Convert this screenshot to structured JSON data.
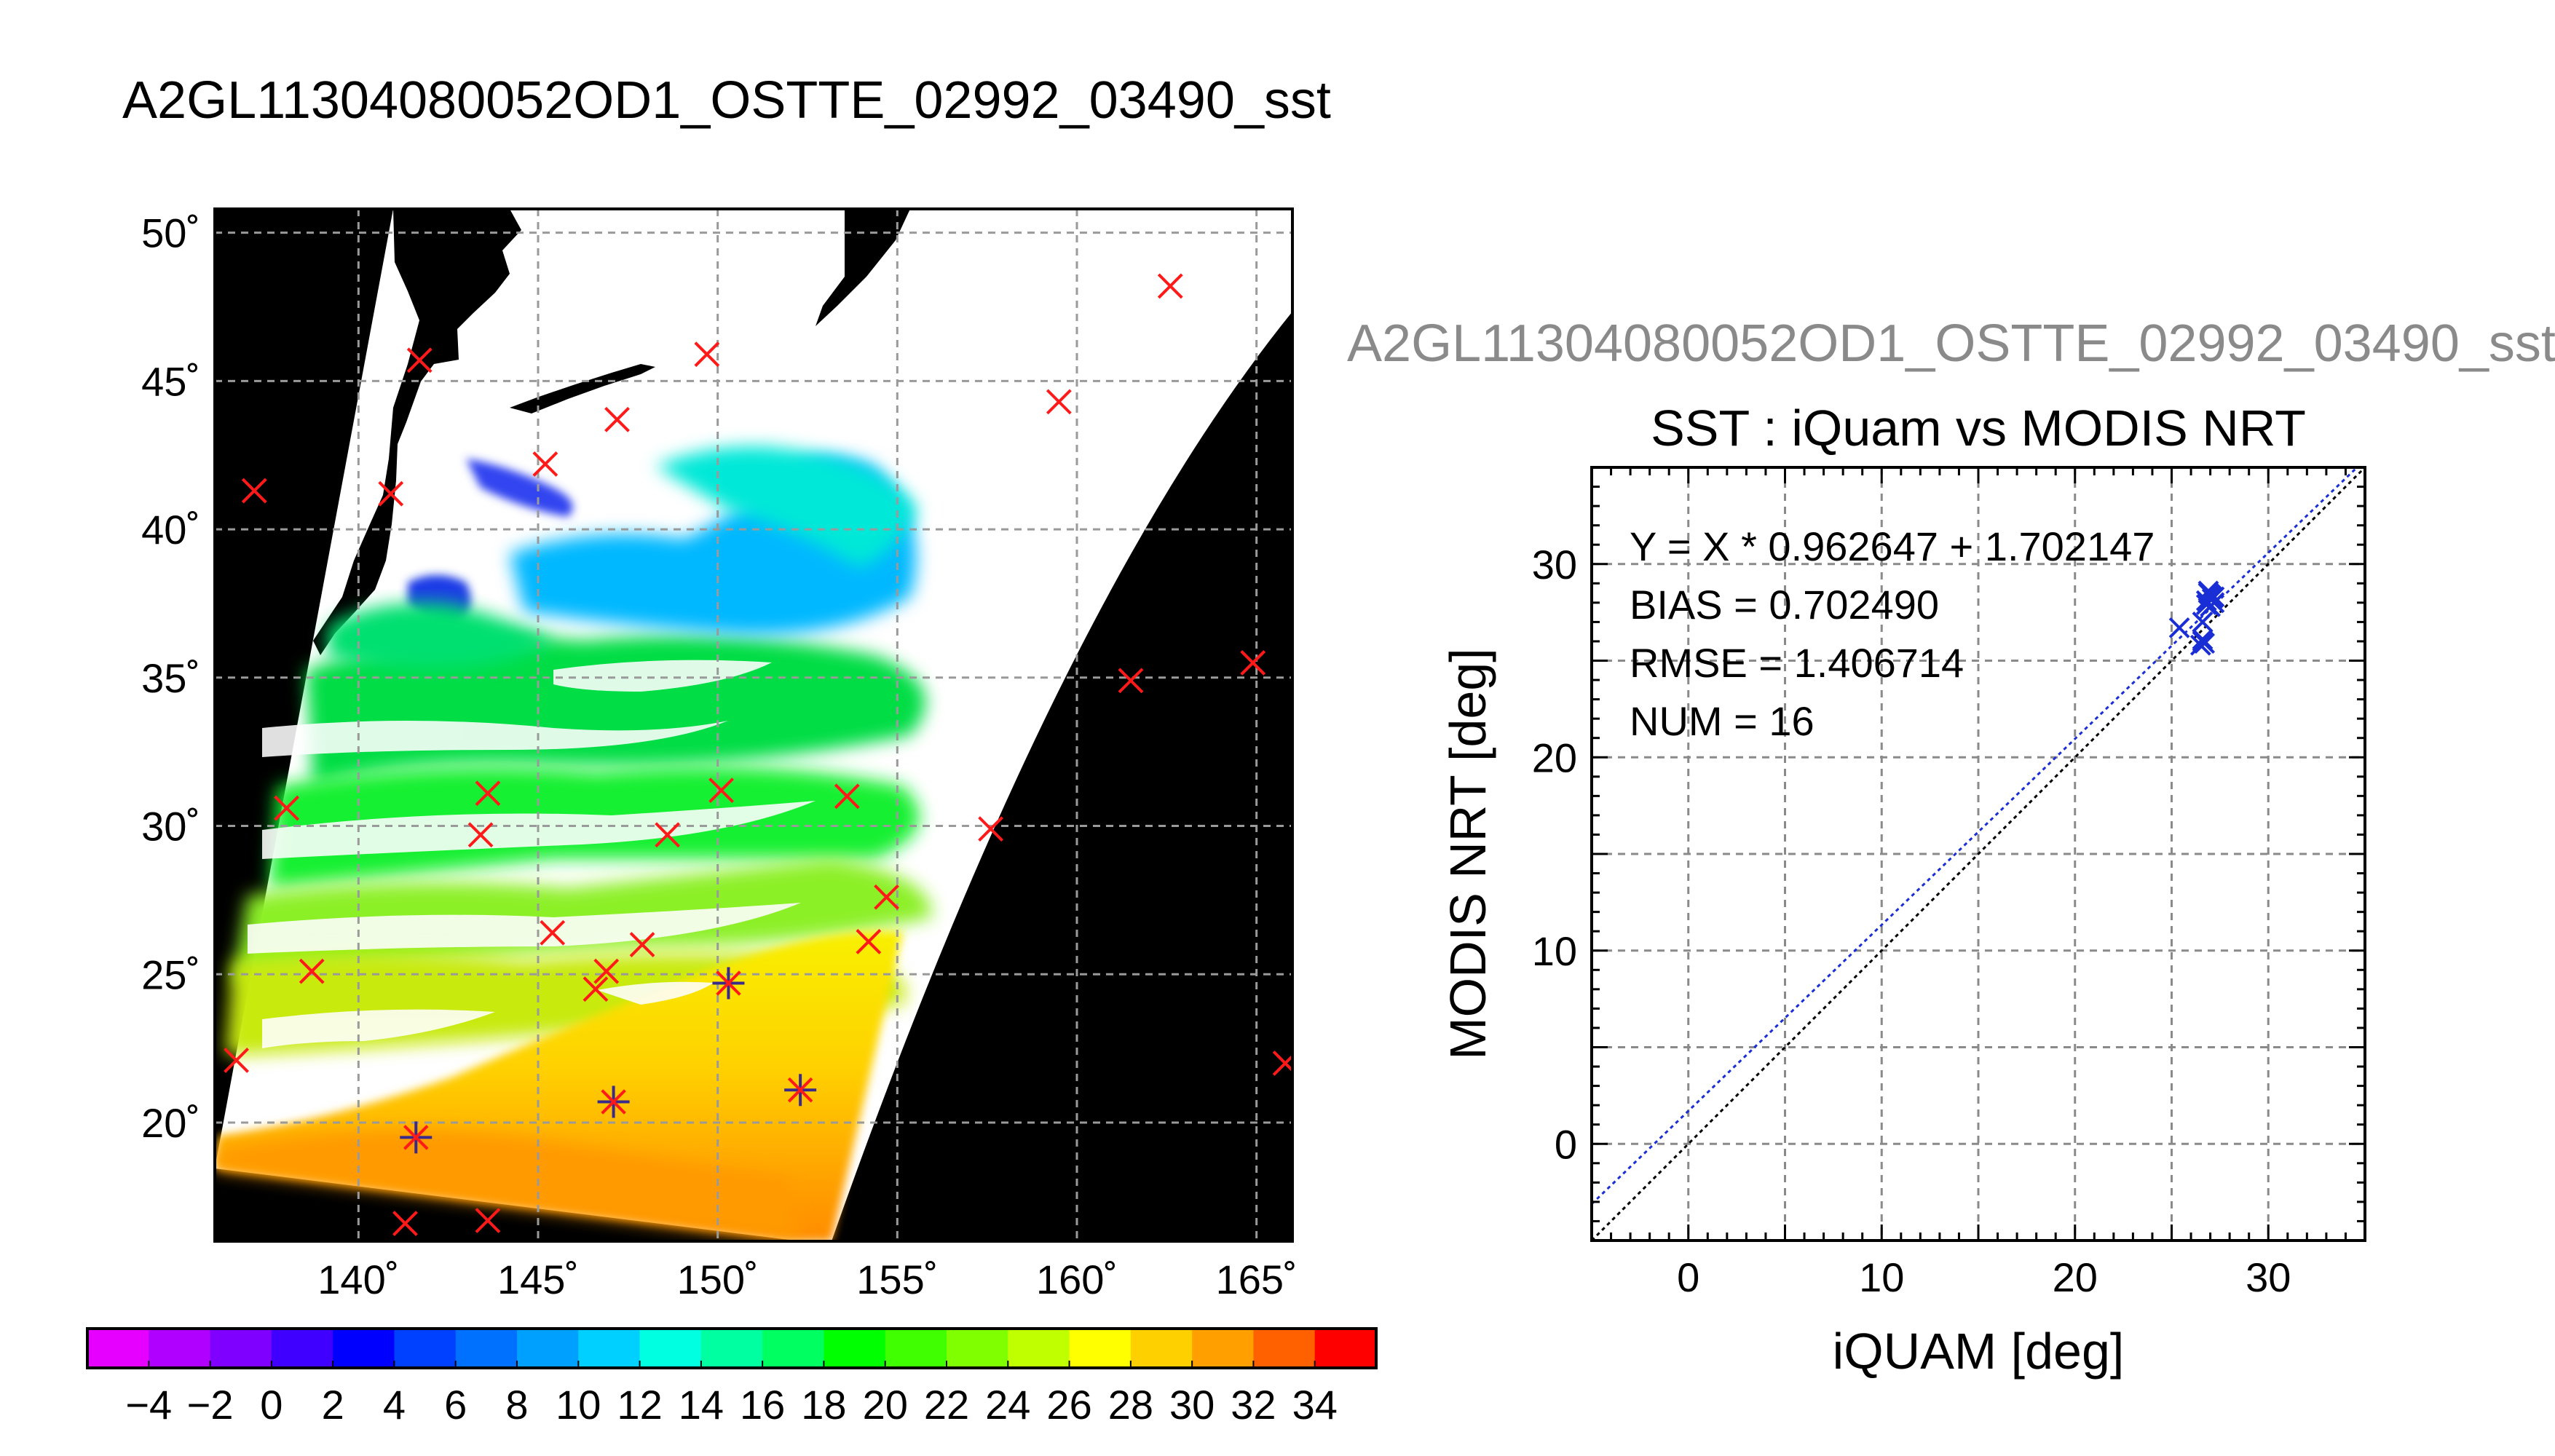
{
  "page_title": "A2GL11304080052OD1_OSTTE_02992_03490_sst",
  "map": {
    "lat_ticks": [
      50,
      45,
      40,
      35,
      30,
      25,
      20
    ],
    "lon_ticks": [
      140,
      145,
      150,
      155,
      160,
      165
    ],
    "lat_tick_labels": [
      "50˚",
      "45˚",
      "40˚",
      "35˚",
      "30˚",
      "25˚",
      "20˚"
    ],
    "lon_tick_labels": [
      "140˚",
      "145˚",
      "150˚",
      "155˚",
      "160˚",
      "165˚"
    ],
    "lon_range": [
      136.0,
      166.0
    ],
    "lat_range": [
      16.0,
      50.8
    ],
    "colors": {
      "no_data": "#000000",
      "cloud": "#ffffff",
      "matchup": "#ff1a1a",
      "valid_matchup": "#3a2a8c"
    }
  },
  "colorbar": {
    "labels": [
      "−4",
      "−2",
      "0",
      "2",
      "4",
      "6",
      "8",
      "10",
      "12",
      "14",
      "16",
      "18",
      "20",
      "22",
      "24",
      "26",
      "28",
      "30",
      "32",
      "34"
    ],
    "colors": [
      "#e600ff",
      "#b000ff",
      "#8000ff",
      "#4000ff",
      "#0000ff",
      "#0040ff",
      "#0070ff",
      "#00a0ff",
      "#00d0ff",
      "#00ffe0",
      "#00ffa0",
      "#00ff60",
      "#00ff00",
      "#40ff00",
      "#80ff00",
      "#c0ff00",
      "#ffff00",
      "#ffd000",
      "#ffa000",
      "#ff6000",
      "#ff0000"
    ]
  },
  "scatter": {
    "subtitle": "A2GL11304080052OD1_OSTTE_02992_03490_sst",
    "title": "SST : iQuam vs MODIS NRT",
    "xlabel": "iQUAM [deg]",
    "ylabel": "MODIS NRT [deg]",
    "xlim": [
      -5,
      35
    ],
    "ylim": [
      -5,
      35
    ],
    "x_ticks": [
      0,
      10,
      20,
      30
    ],
    "y_ticks": [
      0,
      10,
      20,
      30
    ],
    "x_tick_labels": [
      "0",
      "10",
      "20",
      "30"
    ],
    "y_tick_labels": [
      "0",
      "10",
      "20",
      "30"
    ],
    "stats": [
      "Y = X * 0.962647 + 1.702147",
      "BIAS = 0.702490",
      "RMSE = 1.406714",
      "NUM = 16"
    ],
    "colors": {
      "points": "#1a2ed6",
      "fit_line": "#1a2ed6",
      "identity_line": "#000000"
    }
  },
  "chart_data": [
    {
      "type": "scatter",
      "title": "SST : iQuam vs MODIS NRT",
      "xlabel": "iQUAM [deg]",
      "ylabel": "MODIS NRT [deg]",
      "xlim": [
        -5,
        35
      ],
      "ylim": [
        -5,
        35
      ],
      "grid": true,
      "x": [
        26.9,
        27.1,
        26.8,
        27.0,
        26.6,
        25.4,
        26.5,
        26.6,
        27.2,
        26.9,
        27.1,
        26.7,
        26.6,
        26.8,
        27.0,
        27.2
      ],
      "y": [
        28.6,
        28.2,
        27.9,
        28.4,
        27.0,
        26.7,
        25.8,
        26.0,
        28.0,
        28.5,
        28.3,
        25.9,
        26.1,
        28.1,
        27.8,
        28.3
      ],
      "fit": {
        "slope": 0.962647,
        "intercept": 1.702147
      },
      "identity_line": true
    },
    {
      "type": "map",
      "title": "A2GL11304080052OD1_OSTTE_02992_03490_sst",
      "lon_range": [
        136.0,
        166.0
      ],
      "lat_range": [
        16.0,
        50.8
      ],
      "colorbar_range": [
        -5,
        35
      ],
      "colorbar_step": 2,
      "matchups": [
        {
          "lon": 137.1,
          "lat": 41.3
        },
        {
          "lon": 138.0,
          "lat": 30.6
        },
        {
          "lon": 138.7,
          "lat": 25.1
        },
        {
          "lon": 136.6,
          "lat": 22.1
        },
        {
          "lon": 141.7,
          "lat": 45.7
        },
        {
          "lon": 140.9,
          "lat": 41.2
        },
        {
          "lon": 145.2,
          "lat": 42.2
        },
        {
          "lon": 147.2,
          "lat": 43.7
        },
        {
          "lon": 149.7,
          "lat": 45.9
        },
        {
          "lon": 159.5,
          "lat": 44.3
        },
        {
          "lon": 162.6,
          "lat": 48.2
        },
        {
          "lon": 143.6,
          "lat": 31.1
        },
        {
          "lon": 143.4,
          "lat": 29.7
        },
        {
          "lon": 148.6,
          "lat": 29.7
        },
        {
          "lon": 150.1,
          "lat": 31.2
        },
        {
          "lon": 153.6,
          "lat": 31.0
        },
        {
          "lon": 157.6,
          "lat": 29.9
        },
        {
          "lon": 161.5,
          "lat": 34.9
        },
        {
          "lon": 164.9,
          "lat": 35.5
        },
        {
          "lon": 145.4,
          "lat": 26.4
        },
        {
          "lon": 147.9,
          "lat": 26.0
        },
        {
          "lon": 146.9,
          "lat": 25.1
        },
        {
          "lon": 146.6,
          "lat": 24.5
        },
        {
          "lon": 154.2,
          "lat": 26.1
        },
        {
          "lon": 154.7,
          "lat": 27.6
        },
        {
          "lon": 141.3,
          "lat": 16.6
        },
        {
          "lon": 143.6,
          "lat": 16.7
        },
        {
          "lon": 165.8,
          "lat": 22.0
        }
      ],
      "valid_matchups": [
        {
          "lon": 141.6,
          "lat": 19.5
        },
        {
          "lon": 147.1,
          "lat": 20.7
        },
        {
          "lon": 150.3,
          "lat": 24.7
        },
        {
          "lon": 152.3,
          "lat": 21.1
        }
      ]
    }
  ]
}
